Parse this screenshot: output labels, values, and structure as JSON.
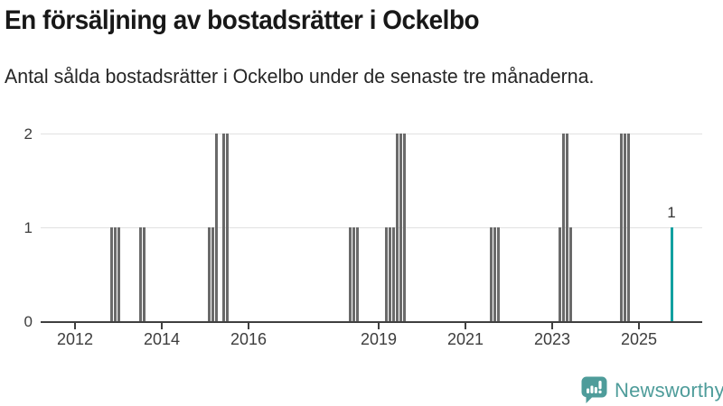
{
  "title": "En försäljning av bostadsrätter i Ockelbo",
  "subtitle": "Antal sålda bostadsrätter i Ockelbo under de senaste tre månaderna.",
  "branding": {
    "name": "Newsworthy",
    "color": "#4E9C9A",
    "icon": "speech-bubble-with-bar-chart-and-exclamation"
  },
  "colors": {
    "bar": "#6a6a6a",
    "highlight_bar": "#12a0a0",
    "grid": "#e1e1e1",
    "axis": "#3f3f3f",
    "tick_label": "#3d3d3d",
    "title": "#181818",
    "subtitle": "#262626",
    "value_label": "#333333"
  },
  "chart_data": {
    "type": "bar",
    "title": "En försäljning av bostadsrätter i Ockelbo",
    "subtitle": "Antal sålda bostadsrätter i Ockelbo under de senaste tre månaderna.",
    "ylabel": "",
    "xlabel": "",
    "ylim": [
      0,
      2
    ],
    "yticks": [
      0,
      1,
      2
    ],
    "grid": "horizontal",
    "legend": "none",
    "x_tick_years": [
      2012,
      2014,
      2016,
      2019,
      2021,
      2023,
      2025
    ],
    "x_start_year": 2012,
    "bars": [
      {
        "month": "2012-11",
        "value": 1
      },
      {
        "month": "2012-12",
        "value": 1
      },
      {
        "month": "2013-01",
        "value": 1
      },
      {
        "month": "2013-07",
        "value": 1
      },
      {
        "month": "2013-08",
        "value": 1
      },
      {
        "month": "2015-02",
        "value": 1
      },
      {
        "month": "2015-03",
        "value": 1
      },
      {
        "month": "2015-04",
        "value": 2
      },
      {
        "month": "2015-06",
        "value": 2
      },
      {
        "month": "2015-07",
        "value": 2
      },
      {
        "month": "2018-05",
        "value": 1
      },
      {
        "month": "2018-06",
        "value": 1
      },
      {
        "month": "2018-07",
        "value": 1
      },
      {
        "month": "2019-03",
        "value": 1
      },
      {
        "month": "2019-04",
        "value": 1
      },
      {
        "month": "2019-05",
        "value": 1
      },
      {
        "month": "2019-06",
        "value": 2
      },
      {
        "month": "2019-07",
        "value": 2
      },
      {
        "month": "2019-08",
        "value": 2
      },
      {
        "month": "2021-08",
        "value": 1
      },
      {
        "month": "2021-09",
        "value": 1
      },
      {
        "month": "2021-10",
        "value": 1
      },
      {
        "month": "2023-03",
        "value": 1
      },
      {
        "month": "2023-04",
        "value": 2
      },
      {
        "month": "2023-05",
        "value": 2
      },
      {
        "month": "2023-06",
        "value": 1
      },
      {
        "month": "2024-08",
        "value": 2
      },
      {
        "month": "2024-09",
        "value": 2
      },
      {
        "month": "2024-10",
        "value": 2
      },
      {
        "month": "2025-10",
        "value": 1,
        "highlight": true,
        "label": "1"
      }
    ]
  }
}
